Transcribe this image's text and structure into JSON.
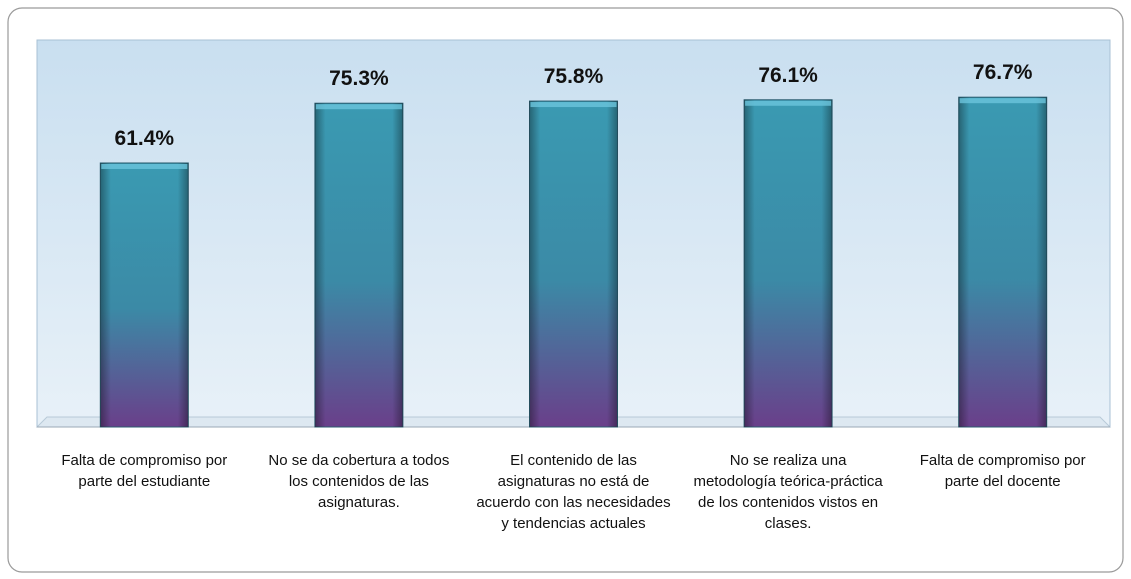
{
  "chart_data": {
    "type": "bar",
    "categories": [
      "Falta de compromiso por parte del estudiante",
      "No se da cobertura a todos los contenidos de las asignaturas.",
      "El contenido de las asignaturas no está de acuerdo con las necesidades y tendencias actuales",
      "No se realiza una metodología teórica-práctica de los contenidos vistos en clases.",
      "Falta de compromiso por parte del docente"
    ],
    "values": [
      61.4,
      75.3,
      75.8,
      76.1,
      76.7
    ],
    "value_labels": [
      "61.4%",
      "75.3%",
      "75.8%",
      "76.1%",
      "76.7%"
    ],
    "ylim": [
      0,
      90
    ]
  }
}
